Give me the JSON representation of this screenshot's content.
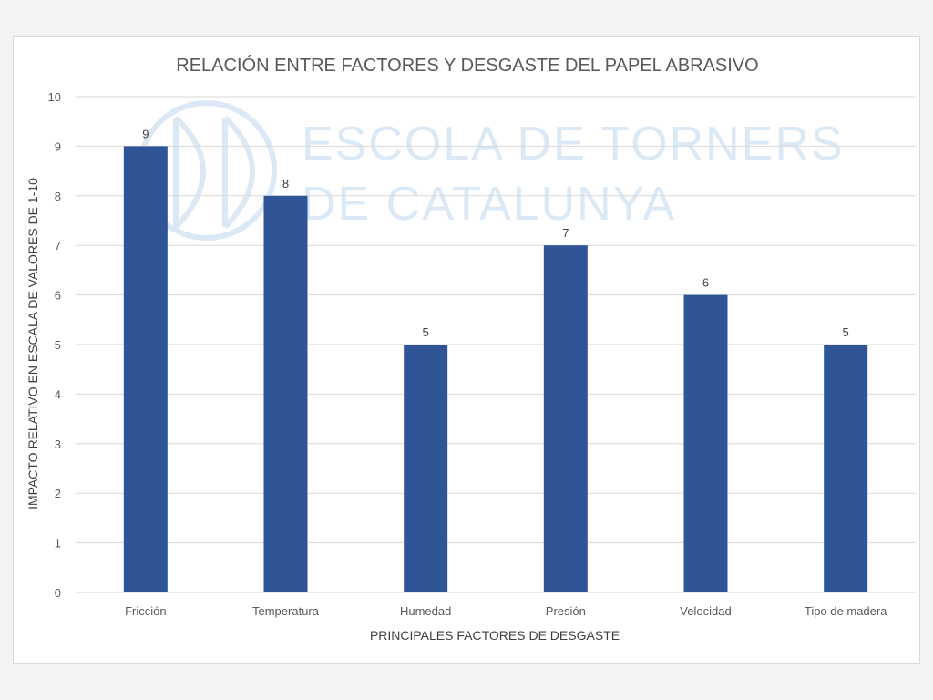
{
  "watermark": {
    "line1": "ESCOLA DE TORNERS",
    "line2": "DE CATALUNYA"
  },
  "colors": {
    "bar": "#2f5597",
    "grid": "#d9d9d9",
    "watermark": "#dbe8f5"
  },
  "chart_data": {
    "type": "bar",
    "title": "RELACIÓN ENTRE FACTORES Y DESGASTE DEL PAPEL ABRASIVO",
    "xlabel": "PRINCIPALES FACTORES DE DESGASTE",
    "ylabel": "IMPACTO RELATIVO EN ESCALA DE VALORES DE 1-10",
    "categories": [
      "Fricción",
      "Temperatura",
      "Humedad",
      "Presión",
      "Velocidad",
      "Tipo de madera"
    ],
    "values": [
      9,
      8,
      5,
      7,
      6,
      5
    ],
    "ylim": [
      0,
      10
    ],
    "yticks": [
      0,
      1,
      2,
      3,
      4,
      5,
      6,
      7,
      8,
      9,
      10
    ],
    "grid": true,
    "legend": "none",
    "data_labels": true
  }
}
